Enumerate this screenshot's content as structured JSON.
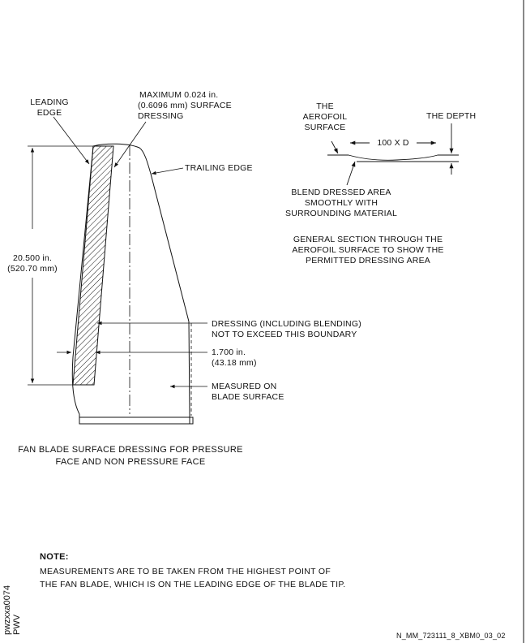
{
  "labels": {
    "leading_edge": [
      "LEADING",
      "EDGE"
    ],
    "maximum_dressing": [
      "MAXIMUM 0.024 in.",
      "(0.6096 mm) SURFACE",
      "DRESSING"
    ],
    "trailing_edge": "TRAILING EDGE",
    "length_in": "20.500 in.",
    "length_mm": "(520.70 mm)",
    "dressing_boundary": [
      "DRESSING (INCLUDING BLENDING)",
      "NOT TO EXCEED THIS BOUNDARY"
    ],
    "width_in": "1.700 in.",
    "width_mm": "(43.18 mm)",
    "measured_on": [
      "MEASURED ON",
      "BLADE SURFACE"
    ],
    "aerofoil_surface": [
      "THE",
      "AEROFOIL",
      "SURFACE"
    ],
    "the_depth": "THE DEPTH",
    "depth_ratio": "100 X D",
    "blend_area": [
      "BLEND DRESSED AREA",
      "SMOOTHLY WITH",
      "SURROUNDING MATERIAL"
    ],
    "general_section": [
      "GENERAL SECTION THROUGH THE",
      "AEROFOIL SURFACE TO SHOW THE",
      "PERMITTED DRESSING AREA"
    ]
  },
  "caption": [
    "FAN BLADE SURFACE DRESSING FOR PRESSURE",
    "FACE AND NON PRESSURE FACE"
  ],
  "note": {
    "heading": "NOTE:",
    "lines": [
      "MEASUREMENTS ARE TO BE TAKEN FROM THE HIGHEST POINT OF",
      "THE FAN BLADE, WHICH IS ON THE LEADING EDGE OF THE BLADE TIP."
    ]
  },
  "side_codes": [
    "pwzxxa0074",
    "PWV"
  ],
  "figure_ref": "N_MM_723111_8_XBM0_03_02"
}
